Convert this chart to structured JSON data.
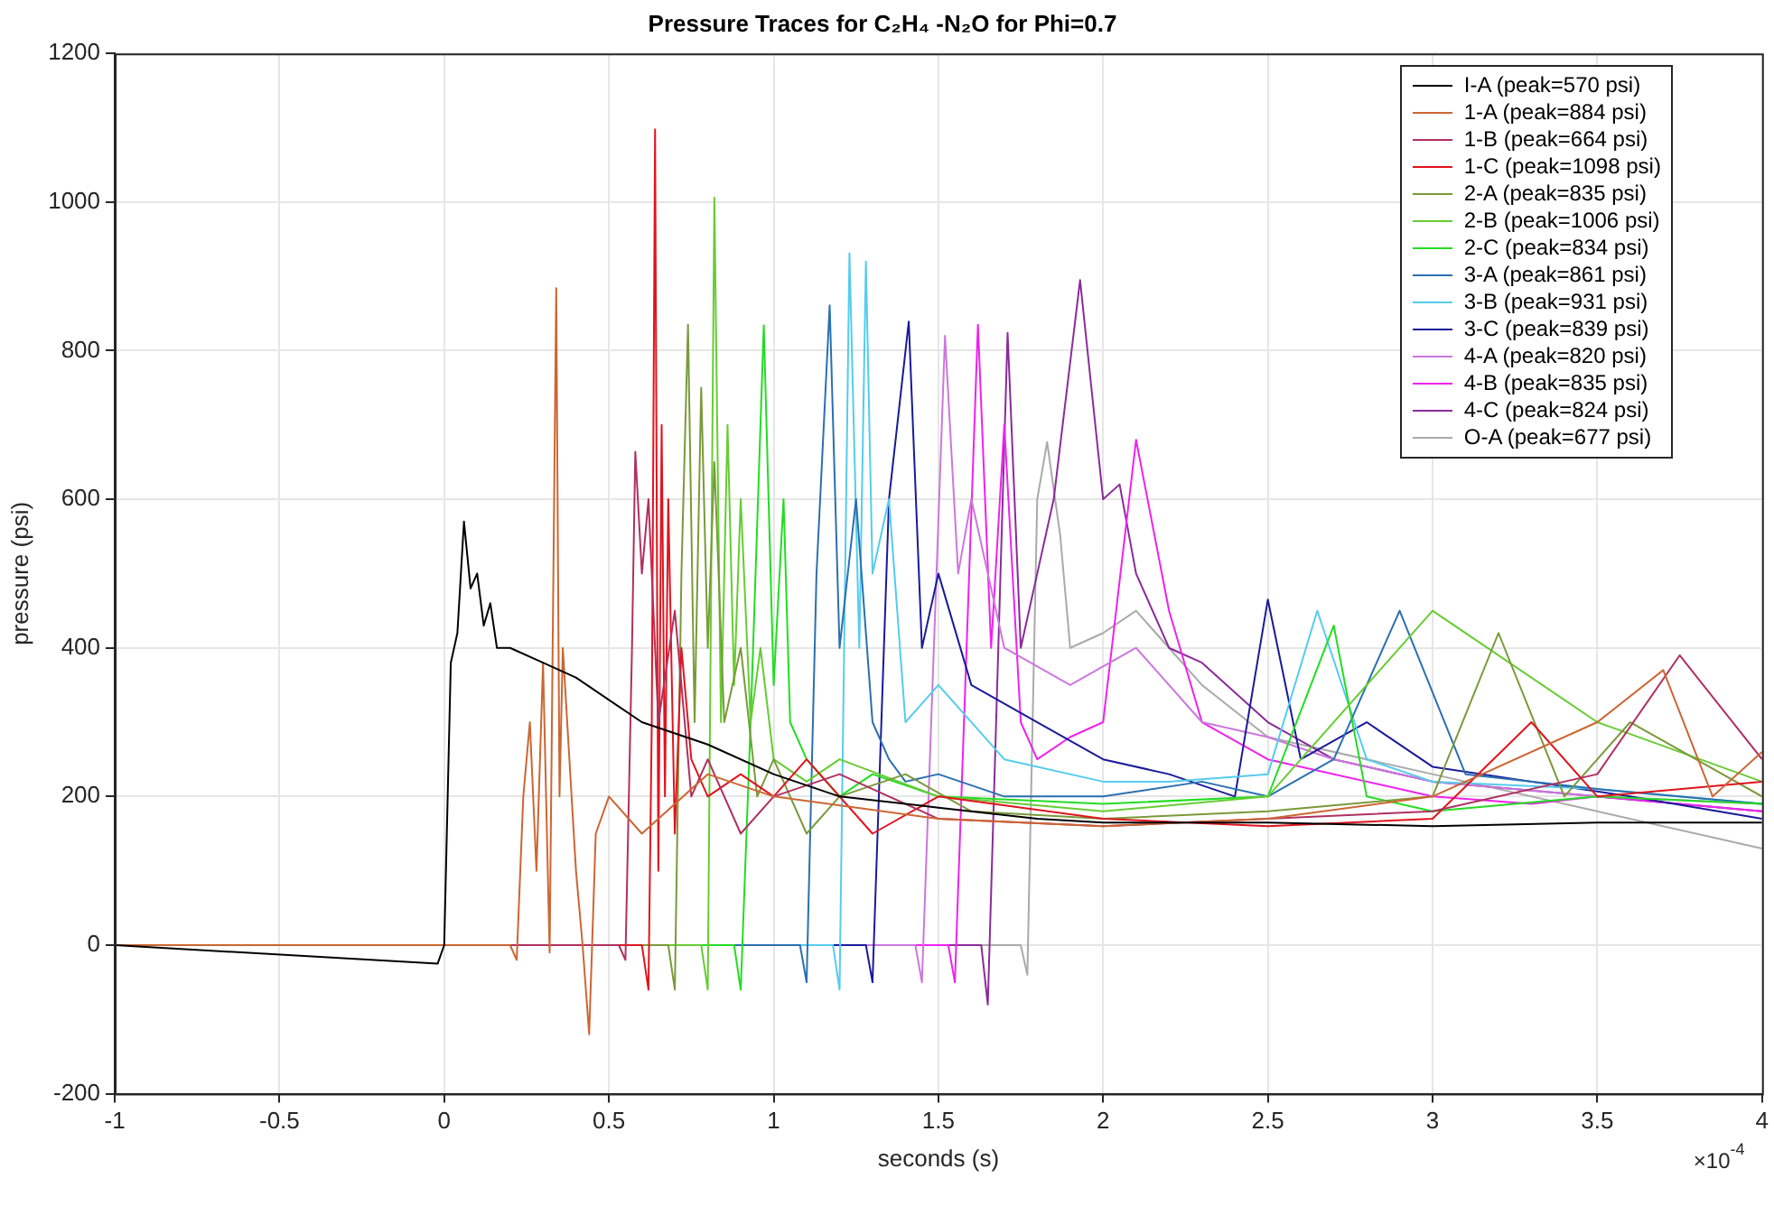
{
  "chart_data": {
    "type": "line",
    "title": "Pressure Traces for C₂H₄ -N₂O for Phi=0.7",
    "xlabel": "seconds (s)",
    "ylabel": "pressure (psi)",
    "annotations": [
      "×10$^{-4}$"
    ],
    "xlim": [
      -1,
      4
    ],
    "xticks": [
      -1,
      -0.5,
      0,
      0.5,
      1,
      1.5,
      2,
      2.5,
      3,
      3.5,
      4
    ],
    "ylim": [
      -200,
      1200
    ],
    "yticks": [
      -200,
      0,
      200,
      400,
      600,
      800,
      1000,
      1200
    ],
    "grid": true,
    "legend": "top right",
    "marker": "none",
    "line_style": "solid",
    "series": [
      {
        "name": "I-A (peak=570 psi)",
        "color": "#000000",
        "x": [
          -1,
          -0.02,
          0,
          0.02,
          0.04,
          0.06,
          0.08,
          0.1,
          0.12,
          0.14,
          0.16,
          0.2,
          0.3,
          0.4,
          0.5,
          0.6,
          0.8,
          1.0,
          1.2,
          1.5,
          1.8,
          2.0,
          2.5,
          3,
          3.5,
          4
        ],
        "values": [
          0,
          -25,
          0,
          380,
          420,
          570,
          480,
          500,
          430,
          460,
          400,
          400,
          380,
          360,
          330,
          300,
          270,
          230,
          200,
          185,
          170,
          165,
          165,
          160,
          165,
          165
        ]
      },
      {
        "name": "1-A (peak=884 psi)",
        "color": "#cc6633",
        "x": [
          -1,
          0.2,
          0.22,
          0.24,
          0.26,
          0.28,
          0.3,
          0.32,
          0.34,
          0.35,
          0.36,
          0.38,
          0.4,
          0.42,
          0.44,
          0.46,
          0.5,
          0.6,
          0.8,
          1.0,
          1.5,
          2.0,
          2.5,
          3.0,
          3.5,
          3.7,
          3.85,
          4
        ],
        "values": [
          0,
          0,
          -20,
          200,
          300,
          100,
          380,
          -10,
          884,
          200,
          400,
          250,
          100,
          0,
          -120,
          150,
          200,
          150,
          230,
          200,
          170,
          160,
          170,
          200,
          300,
          370,
          200,
          260
        ]
      },
      {
        "name": "1-B (peak=664 psi)",
        "color": "#b03060",
        "x": [
          -1,
          0.53,
          0.55,
          0.57,
          0.58,
          0.6,
          0.62,
          0.65,
          0.7,
          0.75,
          0.8,
          0.9,
          1.0,
          1.2,
          1.5,
          2,
          2.5,
          3,
          3.5,
          3.75,
          4
        ],
        "values": [
          0,
          0,
          -20,
          400,
          664,
          500,
          600,
          300,
          450,
          200,
          250,
          150,
          200,
          230,
          170,
          160,
          170,
          180,
          230,
          390,
          250
        ]
      },
      {
        "name": "1-C (peak=1098 psi)",
        "color": "#e0141e",
        "x": [
          -1,
          0.6,
          0.62,
          0.63,
          0.64,
          0.65,
          0.66,
          0.67,
          0.68,
          0.7,
          0.72,
          0.75,
          0.8,
          0.9,
          1.0,
          1.1,
          1.3,
          1.5,
          2,
          2.5,
          3,
          3.3,
          3.5,
          4
        ],
        "values": [
          0,
          0,
          -60,
          300,
          1098,
          100,
          700,
          200,
          600,
          150,
          400,
          250,
          200,
          230,
          200,
          250,
          150,
          200,
          170,
          160,
          170,
          300,
          200,
          220
        ]
      },
      {
        "name": "2-A (peak=835 psi)",
        "color": "#7a9a3a",
        "x": [
          -1,
          0.68,
          0.7,
          0.72,
          0.74,
          0.76,
          0.78,
          0.8,
          0.82,
          0.85,
          0.9,
          0.95,
          1.0,
          1.1,
          1.2,
          1.4,
          1.6,
          2,
          2.5,
          3,
          3.2,
          3.4,
          3.6,
          4
        ],
        "values": [
          0,
          0,
          -60,
          500,
          835,
          300,
          750,
          400,
          650,
          300,
          400,
          200,
          250,
          150,
          200,
          230,
          180,
          170,
          180,
          200,
          420,
          200,
          300,
          200
        ]
      },
      {
        "name": "2-B (peak=1006 psi)",
        "color": "#66cc33",
        "x": [
          -1,
          0.78,
          0.8,
          0.82,
          0.84,
          0.86,
          0.88,
          0.9,
          0.93,
          0.96,
          1.0,
          1.1,
          1.2,
          1.5,
          2,
          2.5,
          3,
          3.5,
          4
        ],
        "values": [
          0,
          0,
          -60,
          1006,
          300,
          700,
          350,
          600,
          300,
          400,
          250,
          220,
          250,
          200,
          180,
          200,
          450,
          300,
          220
        ]
      },
      {
        "name": "2-C (peak=834 psi)",
        "color": "#22dd22",
        "x": [
          -1,
          0.88,
          0.9,
          0.93,
          0.97,
          1.0,
          1.03,
          1.05,
          1.1,
          1.2,
          1.3,
          1.5,
          2,
          2.5,
          2.7,
          2.8,
          3,
          3.5,
          4
        ],
        "values": [
          0,
          0,
          -60,
          300,
          834,
          350,
          600,
          300,
          250,
          200,
          230,
          200,
          190,
          200,
          430,
          200,
          180,
          200,
          190
        ]
      },
      {
        "name": "3-A (peak=861 psi)",
        "color": "#2a70b0",
        "x": [
          -1,
          1.08,
          1.1,
          1.13,
          1.17,
          1.2,
          1.25,
          1.3,
          1.35,
          1.4,
          1.5,
          1.7,
          2,
          2.3,
          2.5,
          2.7,
          2.9,
          3.1,
          3.5,
          4
        ],
        "values": [
          0,
          0,
          -50,
          500,
          861,
          400,
          600,
          300,
          250,
          220,
          230,
          200,
          200,
          220,
          200,
          250,
          450,
          230,
          210,
          190
        ]
      },
      {
        "name": "3-B (peak=931 psi)",
        "color": "#55ccee",
        "x": [
          -1,
          1.18,
          1.2,
          1.23,
          1.26,
          1.28,
          1.3,
          1.35,
          1.4,
          1.5,
          1.7,
          2,
          2.2,
          2.5,
          2.65,
          2.8,
          3,
          3.5,
          4
        ],
        "values": [
          0,
          0,
          -60,
          931,
          400,
          920,
          500,
          600,
          300,
          350,
          250,
          220,
          220,
          230,
          450,
          250,
          220,
          210,
          190
        ]
      },
      {
        "name": "3-C (peak=839 psi)",
        "color": "#1a1a9a",
        "x": [
          -1,
          1.28,
          1.3,
          1.35,
          1.41,
          1.45,
          1.5,
          1.6,
          1.8,
          2,
          2.2,
          2.4,
          2.5,
          2.6,
          2.8,
          3,
          3.3,
          3.6,
          4
        ],
        "values": [
          0,
          0,
          -50,
          600,
          839,
          400,
          500,
          350,
          300,
          250,
          230,
          200,
          465,
          250,
          300,
          240,
          220,
          200,
          170
        ]
      },
      {
        "name": "4-A (peak=820 psi)",
        "color": "#cc77dd",
        "x": [
          -1,
          1.43,
          1.45,
          1.52,
          1.56,
          1.6,
          1.7,
          1.9,
          2.1,
          2.3,
          2.5,
          2.7,
          3,
          3.5,
          4
        ],
        "values": [
          0,
          0,
          -50,
          820,
          500,
          600,
          400,
          350,
          400,
          300,
          280,
          250,
          220,
          200,
          190
        ]
      },
      {
        "name": "4-B (peak=835 psi)",
        "color": "#ee22ee",
        "x": [
          -1,
          1.53,
          1.55,
          1.62,
          1.66,
          1.7,
          1.75,
          1.8,
          1.9,
          2.0,
          2.1,
          2.2,
          2.3,
          2.5,
          3,
          3.3,
          3.5,
          4
        ],
        "values": [
          0,
          0,
          -50,
          835,
          400,
          700,
          300,
          250,
          280,
          300,
          680,
          450,
          300,
          250,
          200,
          190,
          200,
          180
        ]
      },
      {
        "name": "4-C (peak=824 psi)",
        "color": "#8a2b9a",
        "x": [
          -1,
          1.63,
          1.65,
          1.71,
          1.75,
          1.8,
          1.85,
          1.93,
          2.0,
          2.05,
          2.1,
          2.2,
          2.3,
          2.5,
          2.7,
          3,
          3.5,
          4
        ],
        "values": [
          0,
          0,
          -80,
          824,
          400,
          500,
          600,
          895,
          600,
          620,
          500,
          400,
          380,
          300,
          250,
          220,
          200,
          180
        ]
      },
      {
        "name": "O-A (peak=677 psi)",
        "color": "#aaaaaa",
        "x": [
          -1,
          1.75,
          1.77,
          1.8,
          1.83,
          1.87,
          1.9,
          2.0,
          2.1,
          2.3,
          2.5,
          3,
          3.5,
          4
        ],
        "values": [
          0,
          0,
          -40,
          600,
          677,
          550,
          400,
          420,
          450,
          350,
          280,
          230,
          180,
          130
        ]
      }
    ]
  }
}
